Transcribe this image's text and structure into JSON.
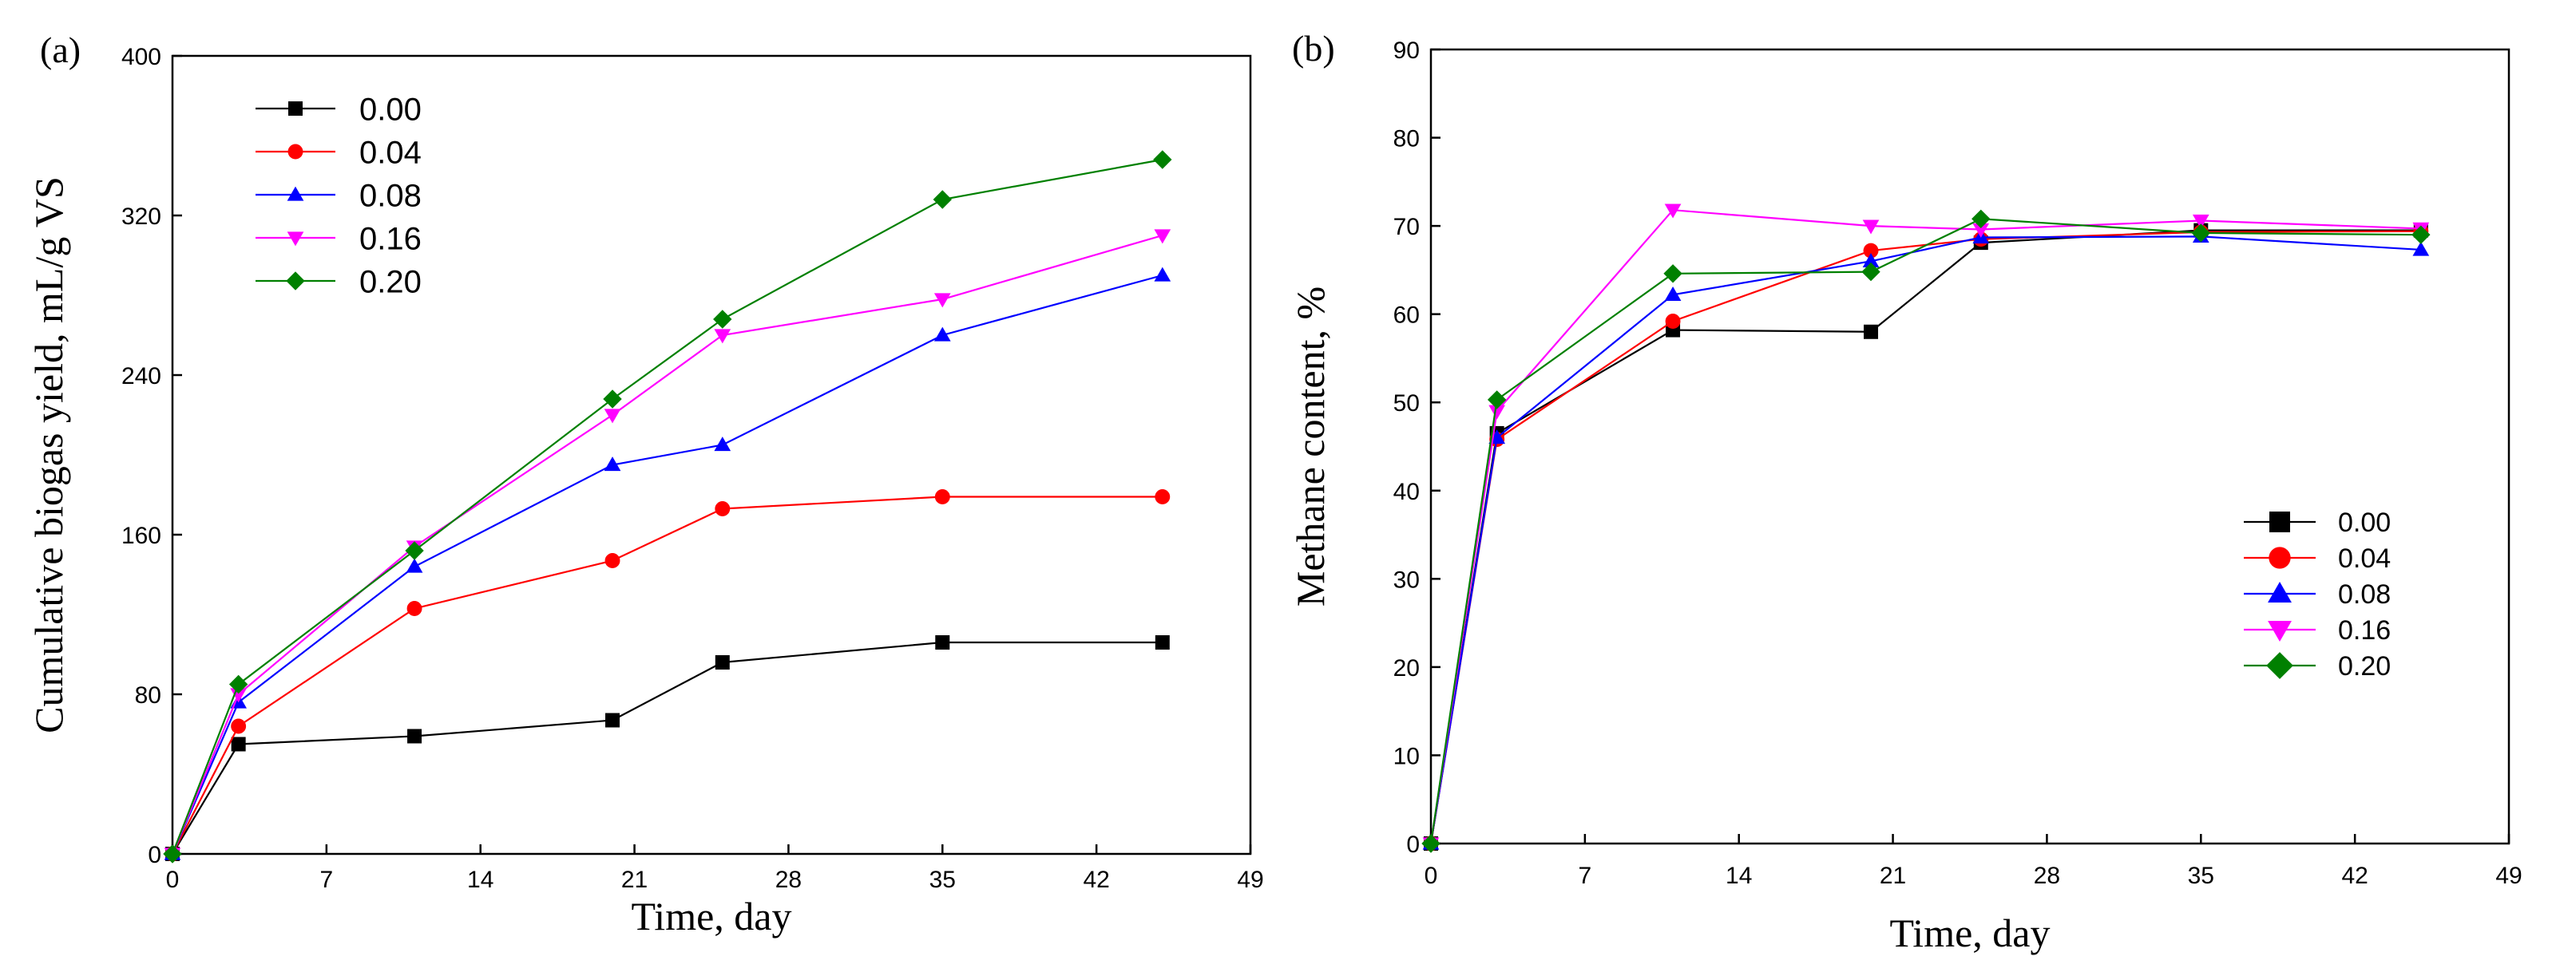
{
  "chart_data": [
    {
      "type": "line",
      "panel_label": "(a)",
      "xlabel": "Time, day",
      "ylabel": "Cumulative biogas yield, mL/g VS",
      "xlim": [
        0,
        49
      ],
      "ylim": [
        0,
        400
      ],
      "xticks": [
        0,
        7,
        14,
        21,
        28,
        35,
        42,
        49
      ],
      "yticks": [
        0,
        80,
        160,
        240,
        320,
        400
      ],
      "legend_position": "top-left",
      "x": [
        0,
        3,
        11,
        20,
        25,
        35,
        45
      ],
      "series": [
        {
          "name": "0.00",
          "color": "#000000",
          "marker": "square",
          "values": [
            0,
            55,
            59,
            67,
            96,
            106,
            106
          ]
        },
        {
          "name": "0.04",
          "color": "#ff0000",
          "marker": "circle",
          "values": [
            0,
            64,
            123,
            147,
            173,
            179,
            179
          ]
        },
        {
          "name": "0.08",
          "color": "#0000ff",
          "marker": "triangle-up",
          "values": [
            0,
            76,
            144,
            195,
            205,
            260,
            290
          ]
        },
        {
          "name": "0.16",
          "color": "#ff00ff",
          "marker": "triangle-down",
          "values": [
            0,
            80,
            154,
            220,
            260,
            278,
            310
          ]
        },
        {
          "name": "0.20",
          "color": "#008000",
          "marker": "diamond",
          "values": [
            0,
            85,
            152,
            228,
            268,
            328,
            348
          ]
        }
      ]
    },
    {
      "type": "line",
      "panel_label": "(b)",
      "xlabel": "Time, day",
      "ylabel": "Methane content, %",
      "xlim": [
        0,
        49
      ],
      "ylim": [
        0,
        90
      ],
      "xticks": [
        0,
        7,
        14,
        21,
        28,
        35,
        42,
        49
      ],
      "yticks": [
        0,
        10,
        20,
        30,
        40,
        50,
        60,
        70,
        80,
        90
      ],
      "legend_position": "bottom-right",
      "x": [
        0,
        3,
        11,
        20,
        25,
        35,
        45
      ],
      "series": [
        {
          "name": "0.00",
          "color": "#000000",
          "marker": "square",
          "values": [
            0,
            46.5,
            58.2,
            58.0,
            68.1,
            69.5,
            69.5
          ]
        },
        {
          "name": "0.04",
          "color": "#ff0000",
          "marker": "circle",
          "values": [
            0,
            45.8,
            59.2,
            67.2,
            68.5,
            69.3,
            69.4
          ]
        },
        {
          "name": "0.08",
          "color": "#0000ff",
          "marker": "triangle-up",
          "values": [
            0,
            46.0,
            62.2,
            66.0,
            68.7,
            68.8,
            67.3
          ]
        },
        {
          "name": "0.16",
          "color": "#ff00ff",
          "marker": "triangle-down",
          "values": [
            0,
            49.0,
            71.8,
            70.0,
            69.6,
            70.6,
            69.7
          ]
        },
        {
          "name": "0.20",
          "color": "#008000",
          "marker": "diamond",
          "values": [
            0,
            50.3,
            64.6,
            64.8,
            70.8,
            69.2,
            69.0
          ]
        }
      ]
    }
  ]
}
